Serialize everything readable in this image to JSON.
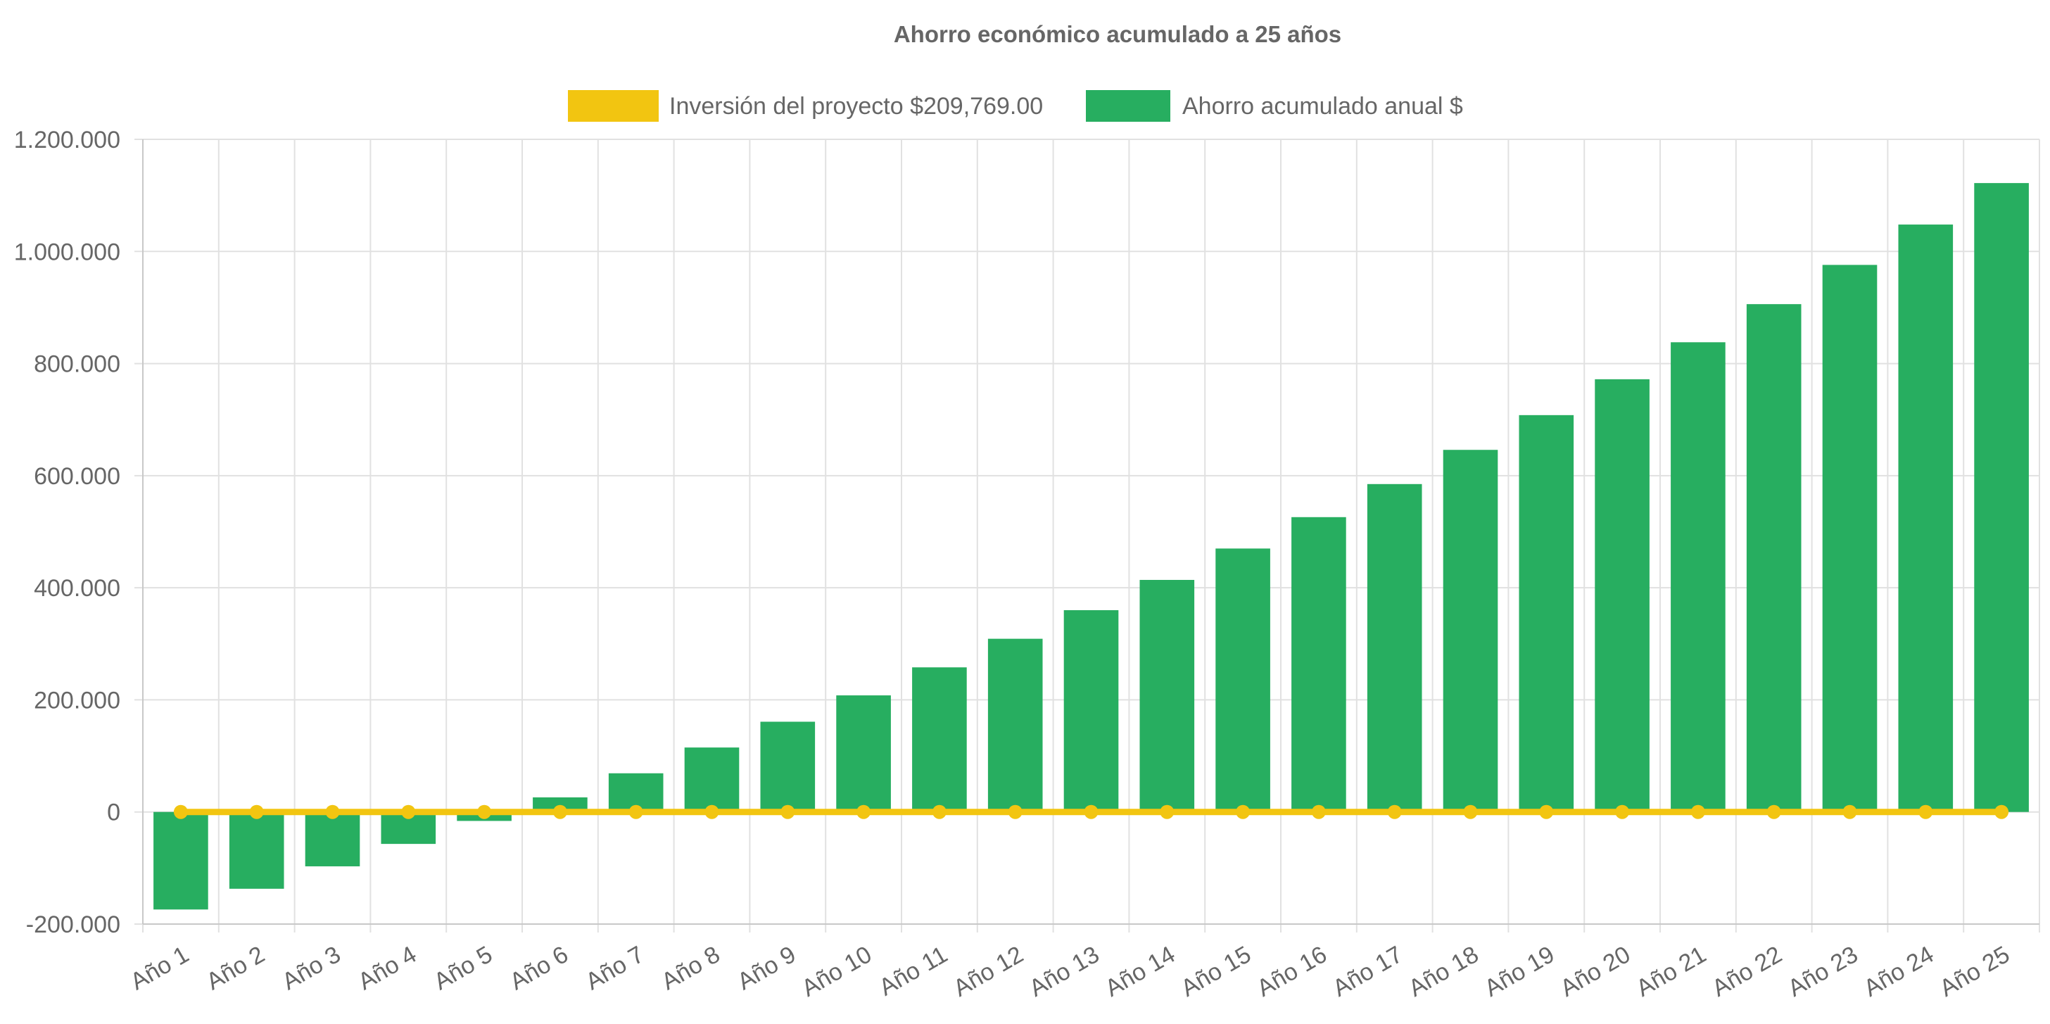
{
  "chart_data": {
    "type": "bar",
    "title": "Ahorro económico acumulado a 25 años",
    "categories": [
      "Año 1",
      "Año 2",
      "Año 3",
      "Año 4",
      "Año 5",
      "Año 6",
      "Año 7",
      "Año 8",
      "Año 9",
      "Año 10",
      "Año 11",
      "Año 12",
      "Año 13",
      "Año 14",
      "Año 15",
      "Año 16",
      "Año 17",
      "Año 18",
      "Año 19",
      "Año 20",
      "Año 21",
      "Año 22",
      "Año 23",
      "Año 24",
      "Año 25"
    ],
    "series": [
      {
        "name": "Inversión del proyecto $209,769.00",
        "kind": "line",
        "color": "#f2c511",
        "values": [
          0,
          0,
          0,
          0,
          0,
          0,
          0,
          0,
          0,
          0,
          0,
          0,
          0,
          0,
          0,
          0,
          0,
          0,
          0,
          0,
          0,
          0,
          0,
          0,
          0
        ]
      },
      {
        "name": "Ahorro acumulado anual $",
        "kind": "bar",
        "color": "#27ae60",
        "values": [
          -174000,
          -137000,
          -97000,
          -57000,
          -16000,
          26000,
          69000,
          115000,
          161000,
          208000,
          258000,
          309000,
          360000,
          414000,
          470000,
          526000,
          585000,
          646000,
          708000,
          772000,
          838000,
          906000,
          976000,
          1048000,
          1122000
        ]
      }
    ],
    "xlabel": "",
    "ylabel": "",
    "ylim": [
      -200000,
      1200000
    ],
    "yticks": [
      -200000,
      0,
      200000,
      400000,
      600000,
      800000,
      1000000,
      1200000
    ],
    "ytick_labels": [
      "-200.000",
      "0",
      "200.000",
      "400.000",
      "600.000",
      "800.000",
      "1.000.000",
      "1.200.000"
    ],
    "grid": true,
    "legend_position": "top-center"
  }
}
